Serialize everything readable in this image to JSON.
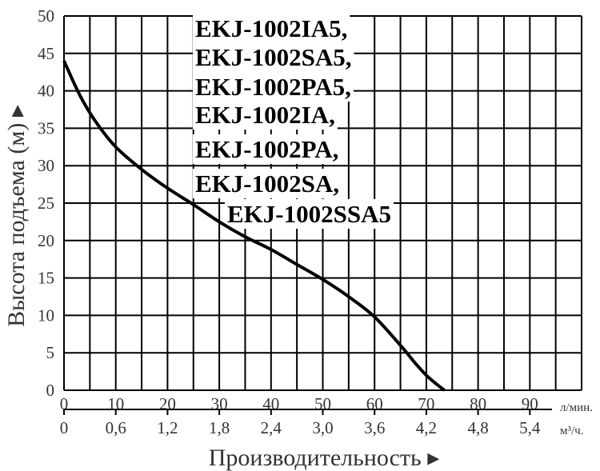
{
  "chart_data": {
    "type": "line",
    "title": "",
    "ylabel": "Высота подъема (м) ▸",
    "xlabel": "Производительность ▸",
    "x_unit_primary": "л/мин.",
    "x_unit_secondary": "м³/ч.",
    "xlim": [
      0,
      100
    ],
    "ylim": [
      0,
      50
    ],
    "grid": true,
    "y_ticks": [
      "0",
      "5",
      "10",
      "15",
      "20",
      "25",
      "30",
      "35",
      "40",
      "45",
      "50"
    ],
    "x_ticks_primary": [
      "0",
      "10",
      "20",
      "30",
      "40",
      "50",
      "60",
      "70",
      "80",
      "90"
    ],
    "x_ticks_secondary": [
      "0",
      "0,6",
      "1,2",
      "1,8",
      "2,4",
      "3,0",
      "3,6",
      "4,2",
      "4,8",
      "5,4"
    ],
    "models": [
      "EKJ-1002IA5,",
      "EKJ-1002SA5,",
      "EKJ-1002PA5,",
      "EKJ-1002IA,",
      "EKJ-1002PA,",
      "EKJ-1002SA,",
      "EKJ-1002SSA5"
    ],
    "series": [
      {
        "x": [
          0,
          3,
          6,
          10,
          15,
          20,
          25,
          30,
          35,
          40,
          45,
          50,
          55,
          60,
          65,
          68,
          70,
          72,
          73.5
        ],
        "y": [
          44,
          39.5,
          36,
          32.5,
          29.5,
          27,
          24.8,
          22.5,
          20.5,
          18.8,
          16.8,
          14.8,
          12.5,
          9.8,
          6,
          3.5,
          2,
          0.8,
          0
        ]
      }
    ]
  }
}
